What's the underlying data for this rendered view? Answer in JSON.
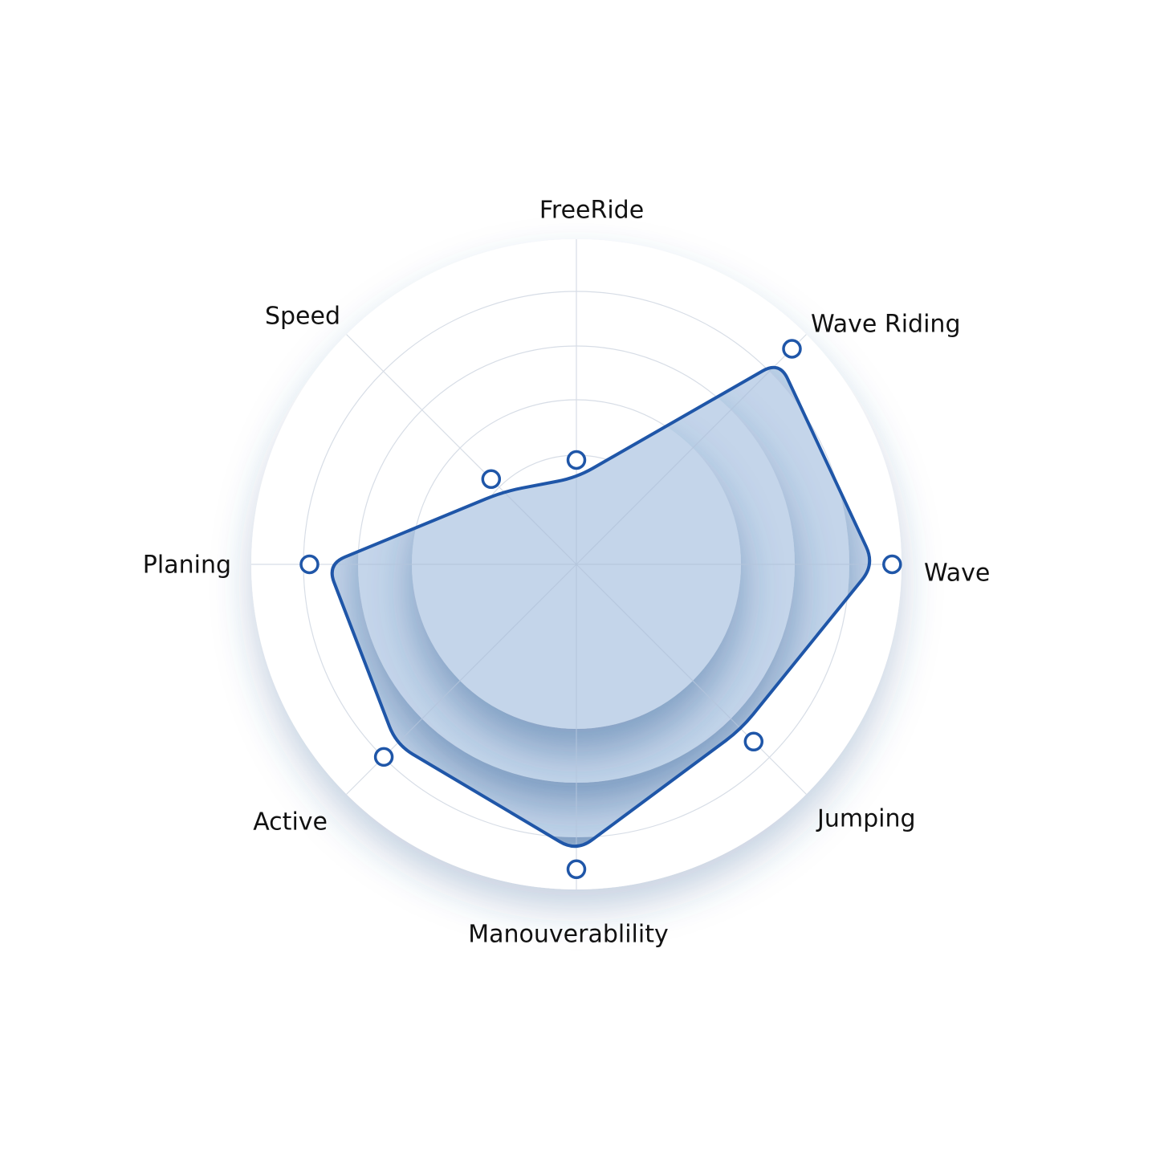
{
  "chart_data": {
    "type": "radar",
    "title": "",
    "categories": [
      "FreeRide",
      "Wave Riding",
      "Wave",
      "Jumping",
      "Manouverablility",
      "Active",
      "Planing",
      "Speed"
    ],
    "series": [
      {
        "values": [
          1.6,
          5.3,
          5.5,
          4.3,
          5.3,
          4.7,
          4.6,
          1.9
        ]
      }
    ],
    "range": [
      0,
      6
    ],
    "rings": 6,
    "grid": true,
    "legend": "none",
    "colors": {
      "line": "#1f56a8",
      "fill": "#c4d5ea",
      "ring_shadow": "#2f5a92",
      "outer_ring": "#ffffff",
      "grid_line": "#d7dde6",
      "label": "#111111"
    }
  }
}
